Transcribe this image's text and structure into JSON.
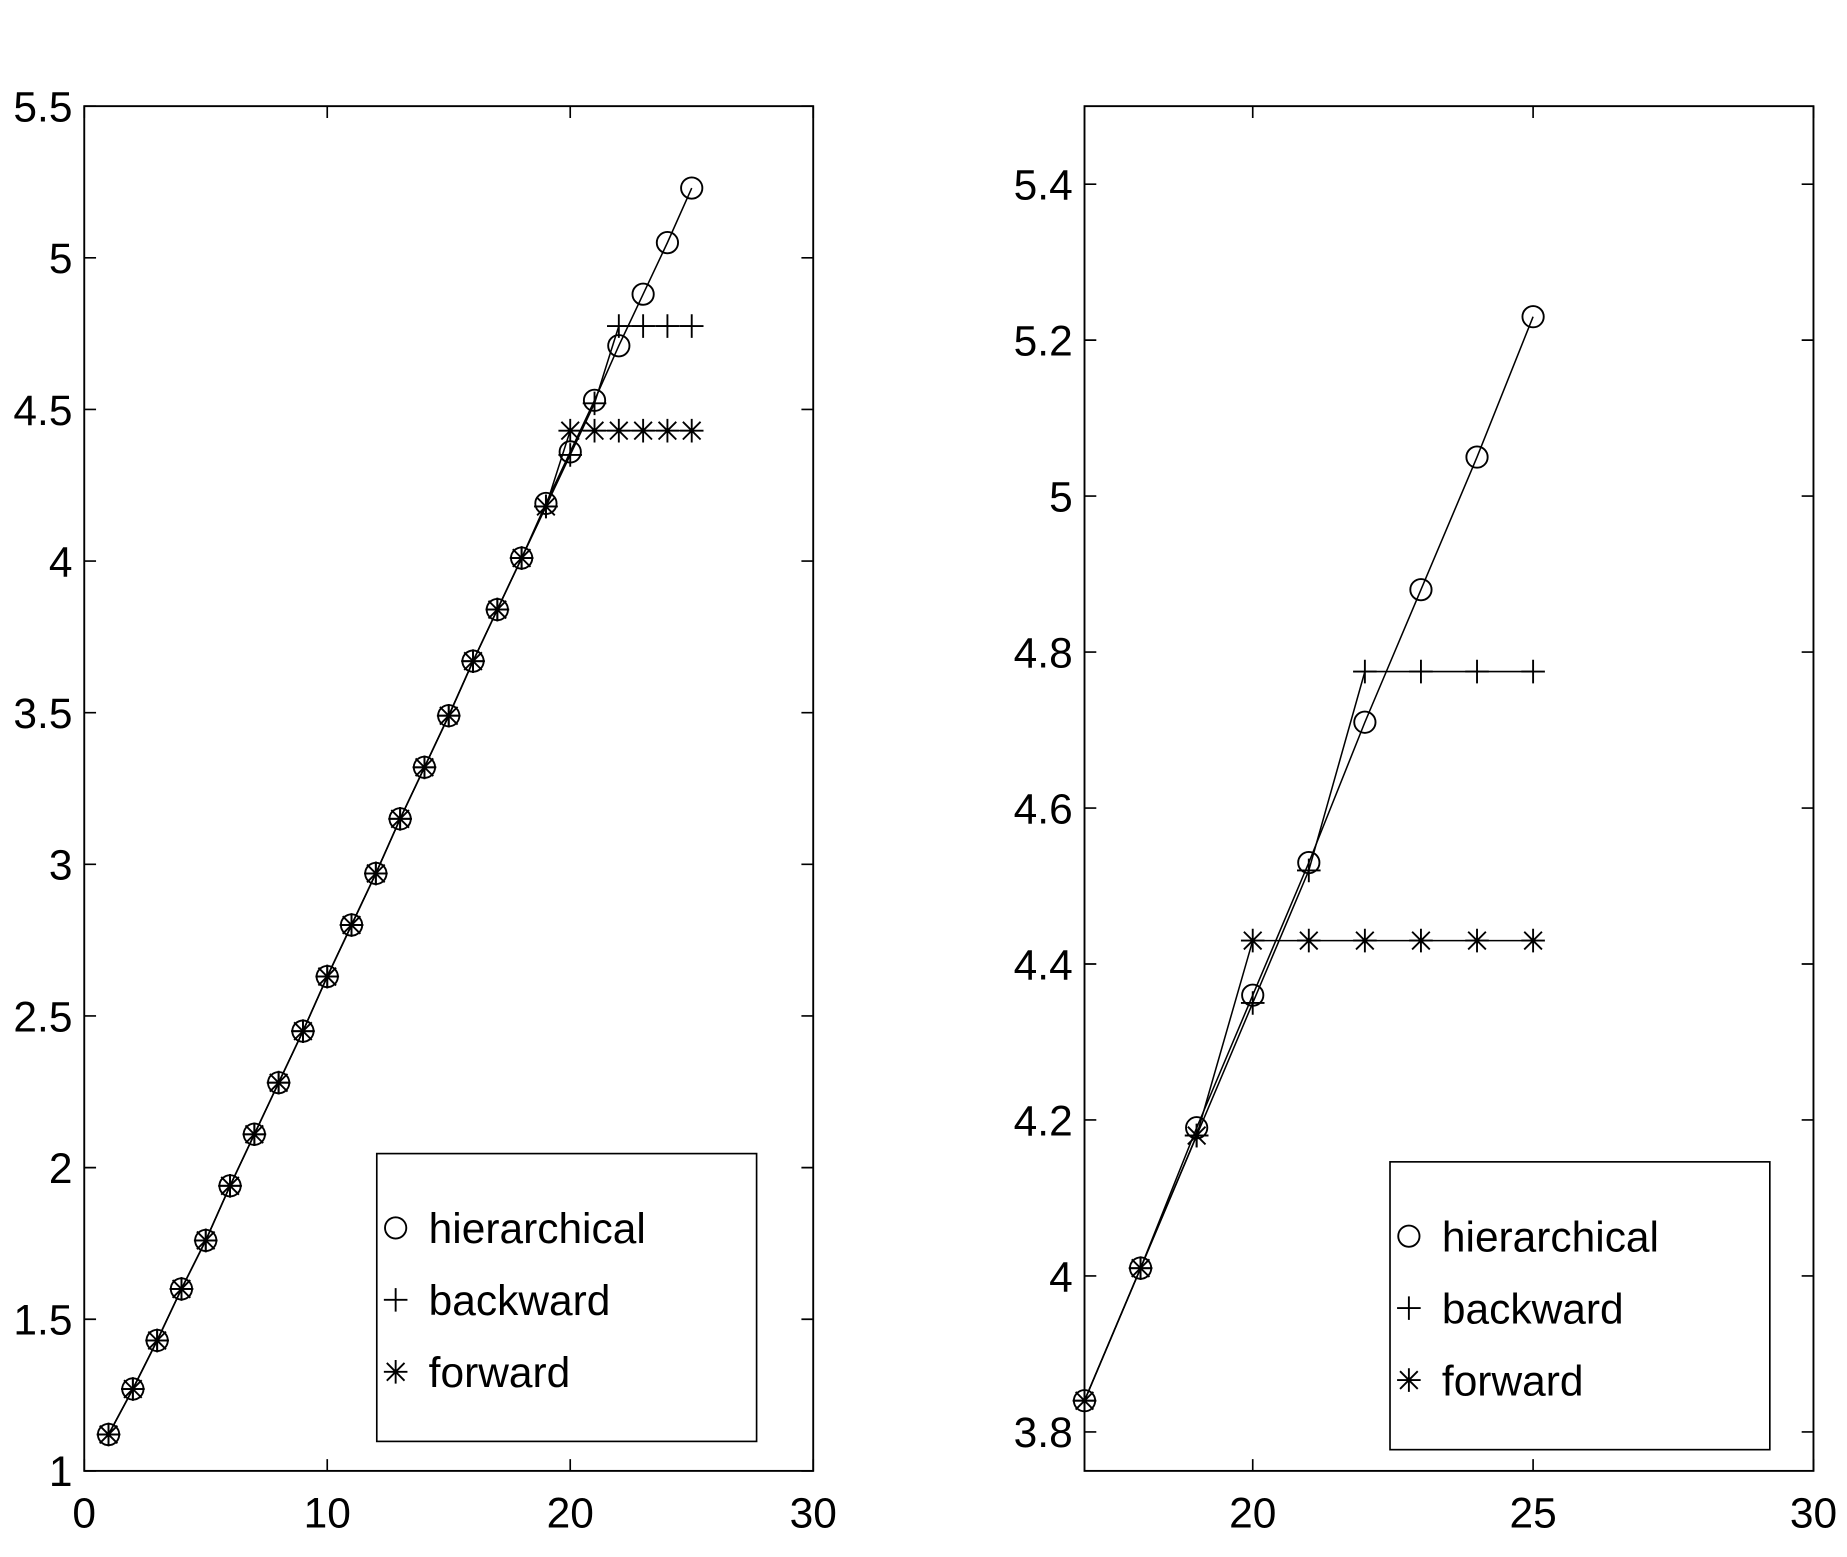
{
  "chart_data": [
    {
      "type": "line",
      "title": "",
      "xlabel": "",
      "ylabel": "",
      "xlim": [
        0,
        30
      ],
      "ylim": [
        1,
        5.5
      ],
      "xticks": [
        0,
        10,
        20,
        30
      ],
      "yticks": [
        1,
        1.5,
        2,
        2.5,
        3,
        3.5,
        4,
        4.5,
        5,
        5.5
      ],
      "grid": false,
      "legend_position": "bottom-right",
      "series": [
        {
          "name": "hierarchical",
          "marker": "circle",
          "x": [
            1,
            2,
            3,
            4,
            5,
            6,
            7,
            8,
            9,
            10,
            11,
            12,
            13,
            14,
            15,
            16,
            17,
            18,
            19,
            20,
            21,
            22,
            23,
            24,
            25
          ],
          "y": [
            1.12,
            1.27,
            1.43,
            1.6,
            1.76,
            1.94,
            2.11,
            2.28,
            2.45,
            2.63,
            2.8,
            2.97,
            3.15,
            3.32,
            3.49,
            3.67,
            3.84,
            4.01,
            4.19,
            4.36,
            4.53,
            4.71,
            4.88,
            5.05,
            5.23
          ]
        },
        {
          "name": "backward",
          "marker": "plus",
          "x": [
            1,
            2,
            3,
            4,
            5,
            6,
            7,
            8,
            9,
            10,
            11,
            12,
            13,
            14,
            15,
            16,
            17,
            18,
            19,
            20,
            21,
            22,
            23,
            24,
            25
          ],
          "y": [
            1.12,
            1.27,
            1.43,
            1.6,
            1.76,
            1.94,
            2.11,
            2.28,
            2.45,
            2.63,
            2.8,
            2.97,
            3.15,
            3.32,
            3.49,
            3.67,
            3.84,
            4.01,
            4.18,
            4.35,
            4.52,
            4.775,
            4.775,
            4.775,
            4.775
          ]
        },
        {
          "name": "forward",
          "marker": "star",
          "x": [
            1,
            2,
            3,
            4,
            5,
            6,
            7,
            8,
            9,
            10,
            11,
            12,
            13,
            14,
            15,
            16,
            17,
            18,
            19,
            20,
            21,
            22,
            23,
            24,
            25
          ],
          "y": [
            1.12,
            1.27,
            1.43,
            1.6,
            1.76,
            1.94,
            2.11,
            2.28,
            2.45,
            2.63,
            2.8,
            2.97,
            3.15,
            3.32,
            3.49,
            3.67,
            3.84,
            4.01,
            4.18,
            4.43,
            4.43,
            4.43,
            4.43,
            4.43,
            4.43
          ]
        }
      ]
    },
    {
      "type": "line",
      "title": "",
      "xlabel": "",
      "ylabel": "",
      "xlim": [
        17,
        30
      ],
      "ylim": [
        3.75,
        5.5
      ],
      "xticks": [
        20,
        25,
        30
      ],
      "yticks": [
        3.8,
        4,
        4.2,
        4.4,
        4.6,
        4.8,
        5,
        5.2,
        5.4
      ],
      "grid": false,
      "legend_position": "bottom-right",
      "series": [
        {
          "name": "hierarchical",
          "marker": "circle",
          "x": [
            17,
            18,
            19,
            20,
            21,
            22,
            23,
            24,
            25
          ],
          "y": [
            3.84,
            4.01,
            4.19,
            4.36,
            4.53,
            4.71,
            4.88,
            5.05,
            5.23
          ]
        },
        {
          "name": "backward",
          "marker": "plus",
          "x": [
            17,
            18,
            19,
            20,
            21,
            22,
            23,
            24,
            25
          ],
          "y": [
            3.84,
            4.01,
            4.18,
            4.35,
            4.52,
            4.775,
            4.775,
            4.775,
            4.775
          ]
        },
        {
          "name": "forward",
          "marker": "star",
          "x": [
            17,
            18,
            19,
            20,
            21,
            22,
            23,
            24,
            25
          ],
          "y": [
            3.84,
            4.01,
            4.18,
            4.43,
            4.43,
            4.43,
            4.43,
            4.43,
            4.43
          ]
        }
      ]
    }
  ]
}
